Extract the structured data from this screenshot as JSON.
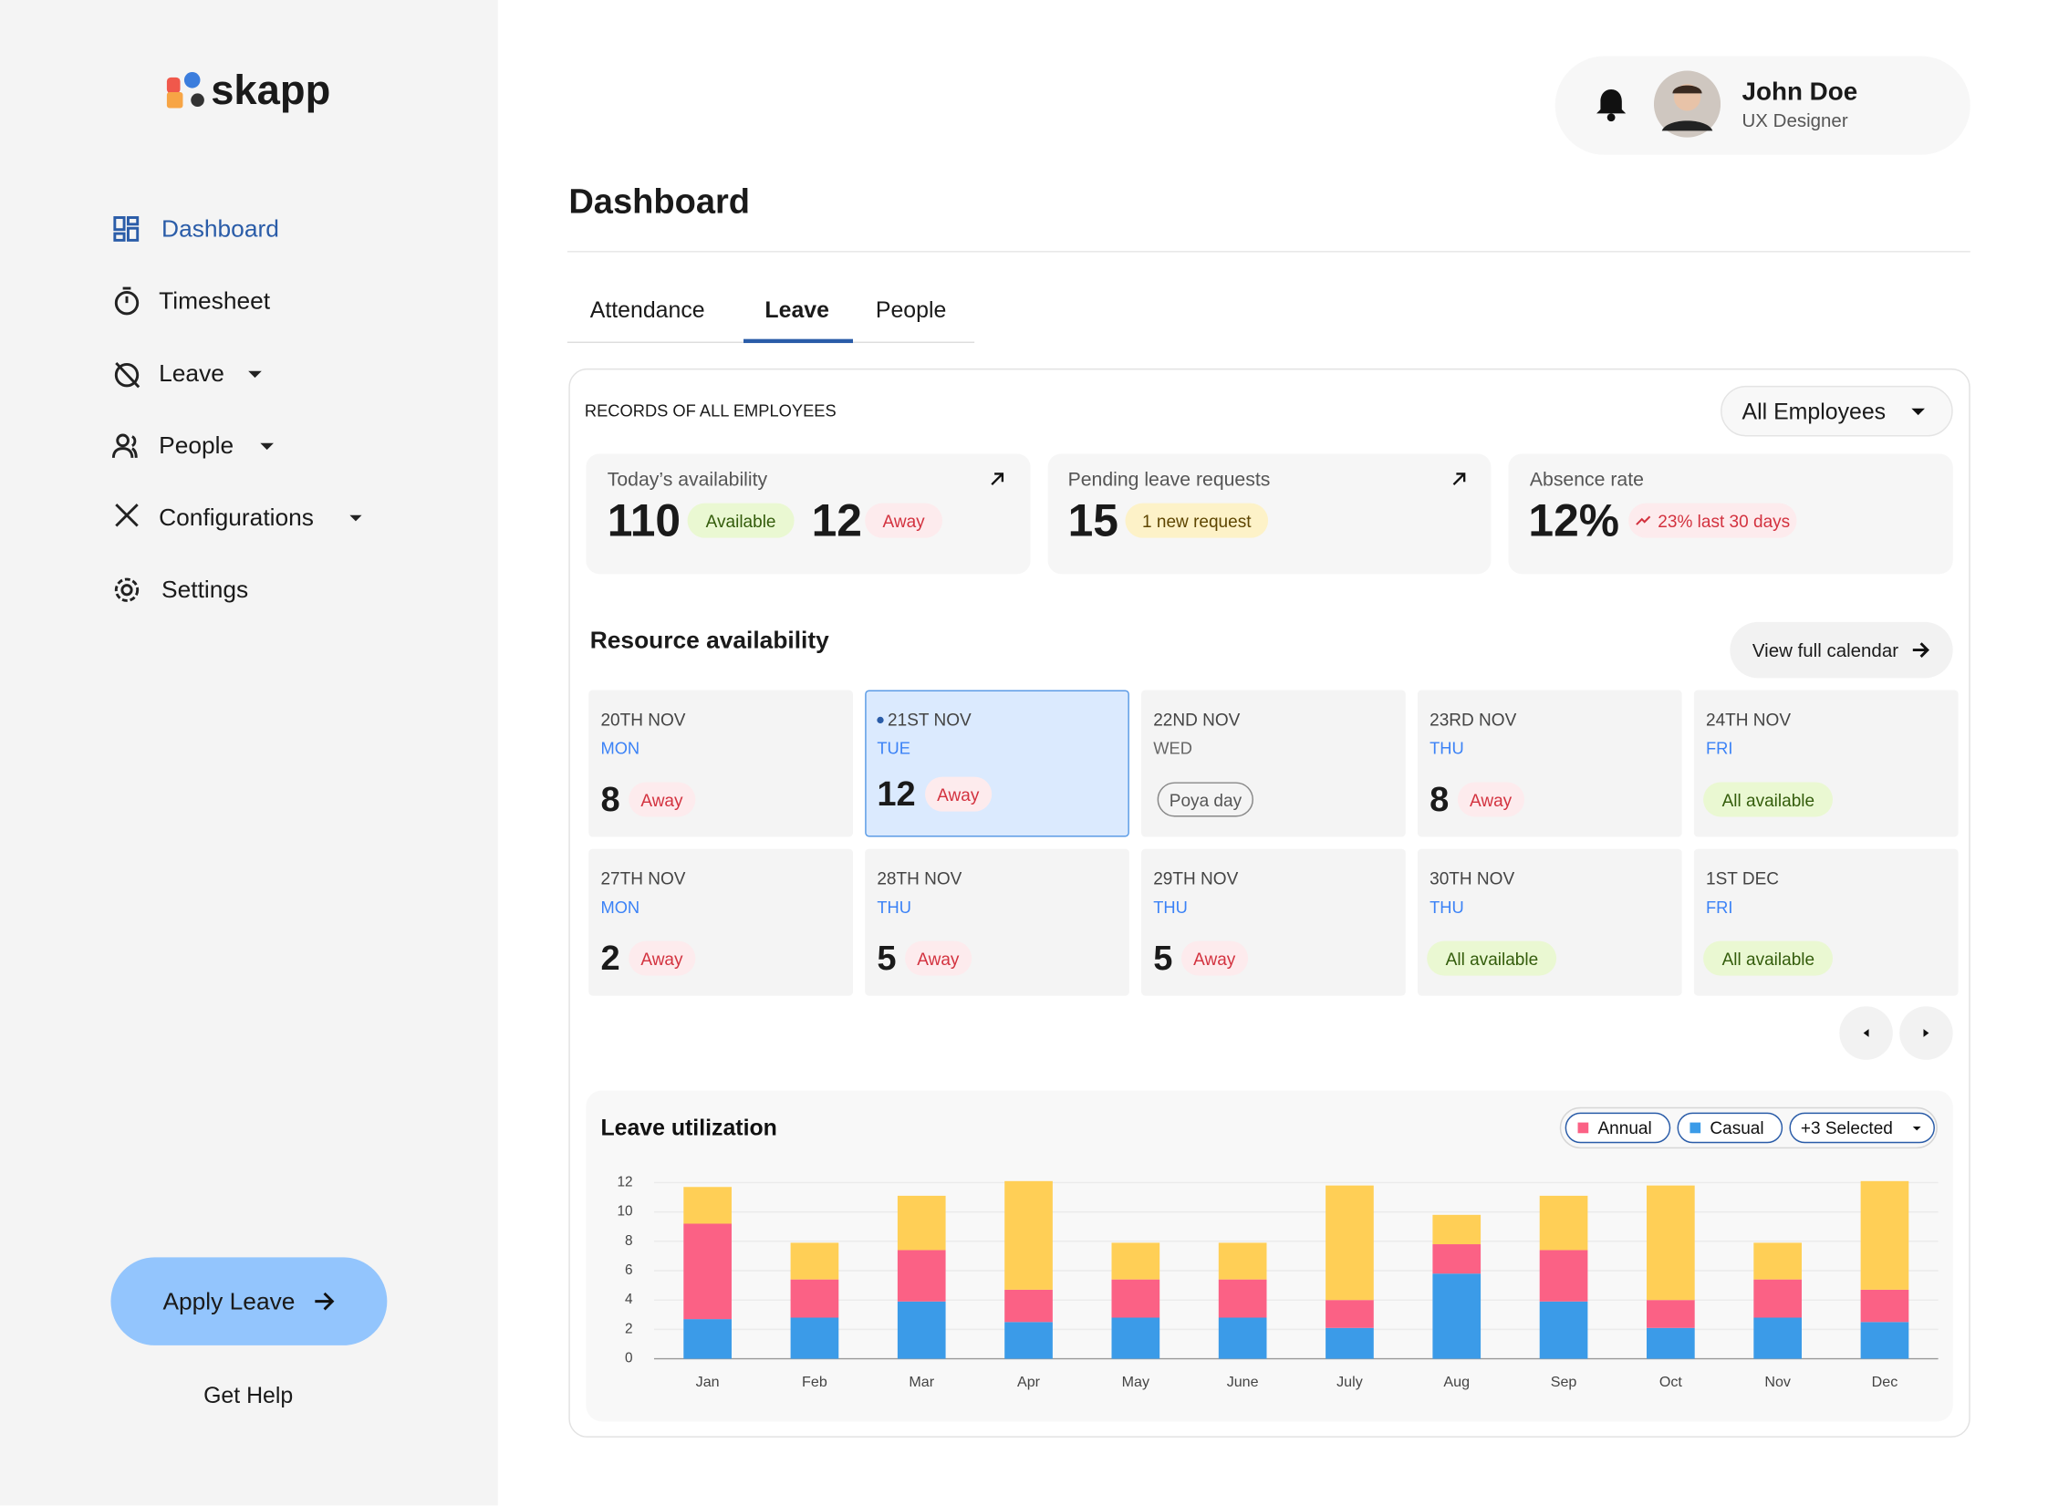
{
  "sidebar": {
    "logo": "skapp",
    "nav": [
      "Dashboard",
      "Timesheet",
      "Leave",
      "People",
      "Configurations",
      "Settings"
    ],
    "apply_leave": "Apply Leave",
    "help": "Get Help"
  },
  "user": {
    "name": "John Doe",
    "role": "UX Designer"
  },
  "page_title": "Dashboard",
  "tabs": [
    "Attendance",
    "Leave",
    "People"
  ],
  "records": {
    "title": "RECORDS OF ALL EMPLOYEES",
    "filter": "All Employees",
    "availability": {
      "label": "Today’s availability",
      "available": 110,
      "available_label": "Available",
      "away": 12,
      "away_label": "Away"
    },
    "pending": {
      "label": "Pending leave requests",
      "count": 15,
      "badge": "1 new request"
    },
    "absence": {
      "label": "Absence rate",
      "rate": "12%",
      "trend": "23% last 30 days"
    }
  },
  "resource": {
    "title": "Resource availability",
    "calendar_button": "View full calendar",
    "days": [
      {
        "date": "20TH NOV",
        "day": "MON",
        "count": 8,
        "badge": "Away"
      },
      {
        "date": "21ST NOV",
        "day": "TUE",
        "count": 12,
        "badge": "Away"
      },
      {
        "date": "22ND NOV",
        "day": "WED",
        "holiday": "Poya day"
      },
      {
        "date": "23RD NOV",
        "day": "THU",
        "count": 8,
        "badge": "Away"
      },
      {
        "date": "24TH NOV",
        "day": "FRI",
        "badge": "All available"
      },
      {
        "date": "27TH NOV",
        "day": "MON",
        "count": 2,
        "badge": "Away"
      },
      {
        "date": "28TH NOV",
        "day": "THU",
        "count": 5,
        "badge": "Away"
      },
      {
        "date": "29TH NOV",
        "day": "THU",
        "count": 5,
        "badge": "Away"
      },
      {
        "date": "30TH NOV",
        "day": "THU",
        "badge": "All available"
      },
      {
        "date": "1ST DEC",
        "day": "FRI",
        "badge": "All available"
      }
    ]
  },
  "chart_data": {
    "type": "bar",
    "stacked": true,
    "title": "Leave utilization",
    "filter_label": "+3 Selected",
    "categories": [
      "Jan",
      "Feb",
      "Mar",
      "Apr",
      "May",
      "June",
      "July",
      "Aug",
      "Sep",
      "Oct",
      "Nov",
      "Dec"
    ],
    "series": [
      {
        "name": "Casual",
        "color": "#3b9be8",
        "values": [
          2.7,
          2.8,
          3.9,
          2.5,
          2.8,
          2.8,
          2.1,
          5.8,
          3.9,
          2.1,
          2.8,
          2.5
        ]
      },
      {
        "name": "Annual",
        "color": "#fb6185",
        "values": [
          6.5,
          2.6,
          3.5,
          2.2,
          2.6,
          2.6,
          1.9,
          2.0,
          3.5,
          1.9,
          2.6,
          2.2
        ]
      },
      {
        "color": "#ffcf56",
        "values": [
          2.5,
          2.5,
          3.7,
          7.4,
          2.5,
          2.5,
          7.8,
          2.0,
          3.7,
          7.8,
          2.5,
          7.4
        ]
      }
    ],
    "ylim": [
      0,
      12
    ],
    "yticks": [
      0,
      2,
      4,
      6,
      8,
      10,
      12
    ],
    "grid": true
  }
}
